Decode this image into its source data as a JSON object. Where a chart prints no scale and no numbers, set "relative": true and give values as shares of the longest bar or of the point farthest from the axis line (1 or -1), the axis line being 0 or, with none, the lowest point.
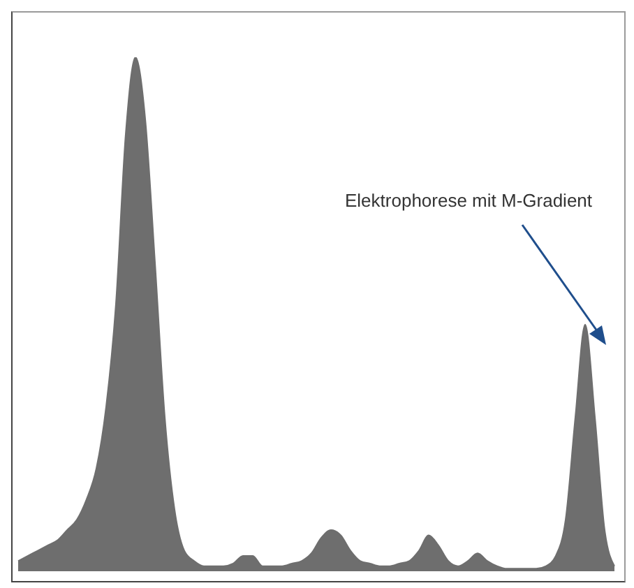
{
  "chart_data": {
    "type": "area",
    "relative": true,
    "color": "#6e6e6e",
    "categories": [
      null,
      null,
      null,
      null,
      null,
      null,
      null,
      null,
      null,
      null,
      null,
      null,
      null,
      null,
      null,
      null,
      null,
      null,
      null,
      null,
      null,
      null,
      null,
      null,
      null,
      null,
      null,
      null,
      null,
      null,
      null,
      null,
      null,
      null,
      null,
      null,
      null,
      null,
      null,
      null,
      null,
      null,
      null,
      null,
      null,
      null,
      null,
      null,
      null,
      null,
      null,
      null,
      null,
      null,
      null,
      null,
      null,
      null,
      null,
      null,
      null,
      null
    ],
    "values": [
      0.02,
      0.03,
      0.04,
      0.05,
      0.06,
      0.08,
      0.1,
      0.14,
      0.2,
      0.32,
      0.52,
      0.85,
      1,
      0.88,
      0.6,
      0.3,
      0.12,
      0.04,
      0.02,
      0.01,
      0.01,
      0.01,
      0.015,
      0.03,
      0.03,
      0.01,
      0.01,
      0.01,
      0.015,
      0.02,
      0.035,
      0.065,
      0.08,
      0.07,
      0.04,
      0.02,
      0.015,
      0.01,
      0.01,
      0.015,
      0.02,
      0.04,
      0.07,
      0.05,
      0.02,
      0.01,
      0.02,
      0.035,
      0.02,
      0.01,
      0.005,
      0.005,
      0.005,
      0.005,
      0.01,
      0.03,
      0.1,
      0.3,
      0.48,
      0.3,
      0.08,
      0.01
    ],
    "annotations": [
      "Elektrophorese mit M-Gradient"
    ]
  }
}
